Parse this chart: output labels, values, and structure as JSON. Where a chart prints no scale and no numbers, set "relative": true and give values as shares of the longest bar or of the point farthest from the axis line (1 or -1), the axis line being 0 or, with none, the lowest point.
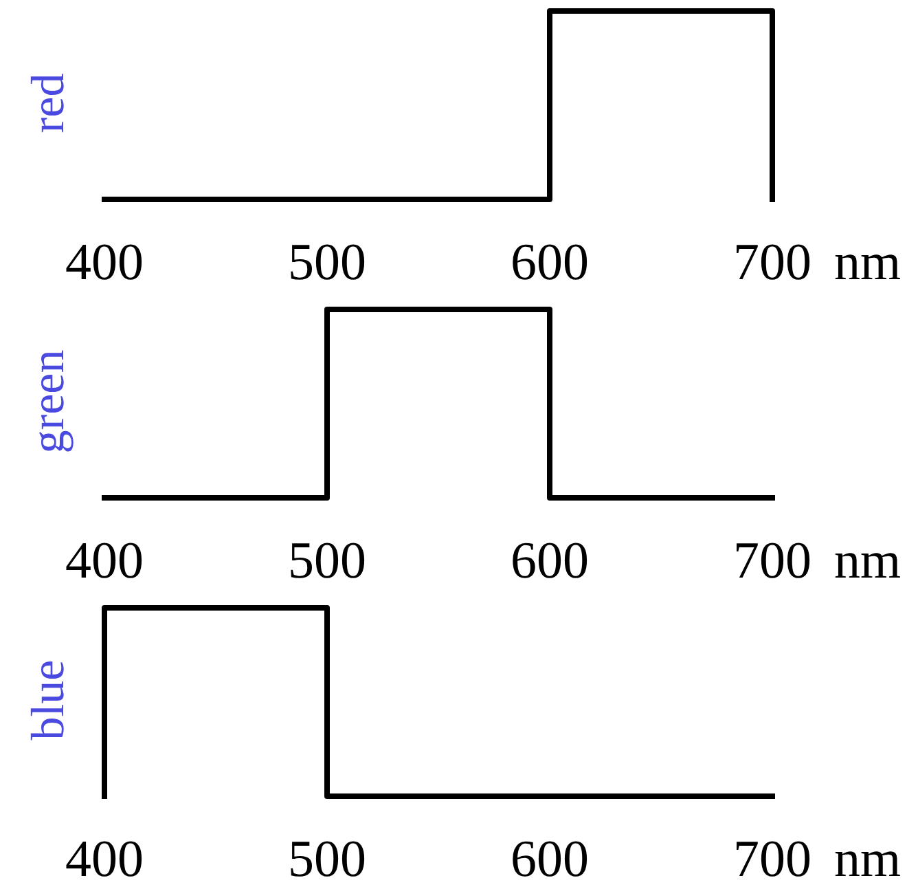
{
  "chart_data": [
    {
      "type": "line",
      "ylabel": "red",
      "xlabel": "nm",
      "x": [
        400,
        600,
        600,
        700,
        700
      ],
      "values": [
        0,
        0,
        1,
        1,
        0
      ],
      "color": "#000000",
      "relative": true,
      "xlim": [
        400,
        700
      ],
      "xticks": [
        400,
        500,
        600,
        700
      ]
    },
    {
      "type": "line",
      "ylabel": "green",
      "xlabel": "nm",
      "x": [
        400,
        500,
        500,
        600,
        600,
        700
      ],
      "values": [
        0,
        0,
        1,
        1,
        0,
        0
      ],
      "color": "#000000",
      "relative": true,
      "xlim": [
        400,
        700
      ],
      "xticks": [
        400,
        500,
        600,
        700
      ]
    },
    {
      "type": "line",
      "ylabel": "blue",
      "xlabel": "nm",
      "x": [
        400,
        400,
        500,
        500,
        700
      ],
      "values": [
        0,
        1,
        1,
        0,
        0
      ],
      "color": "#000000",
      "relative": true,
      "xlim": [
        400,
        700
      ],
      "xticks": [
        400,
        500,
        600,
        700
      ]
    }
  ]
}
